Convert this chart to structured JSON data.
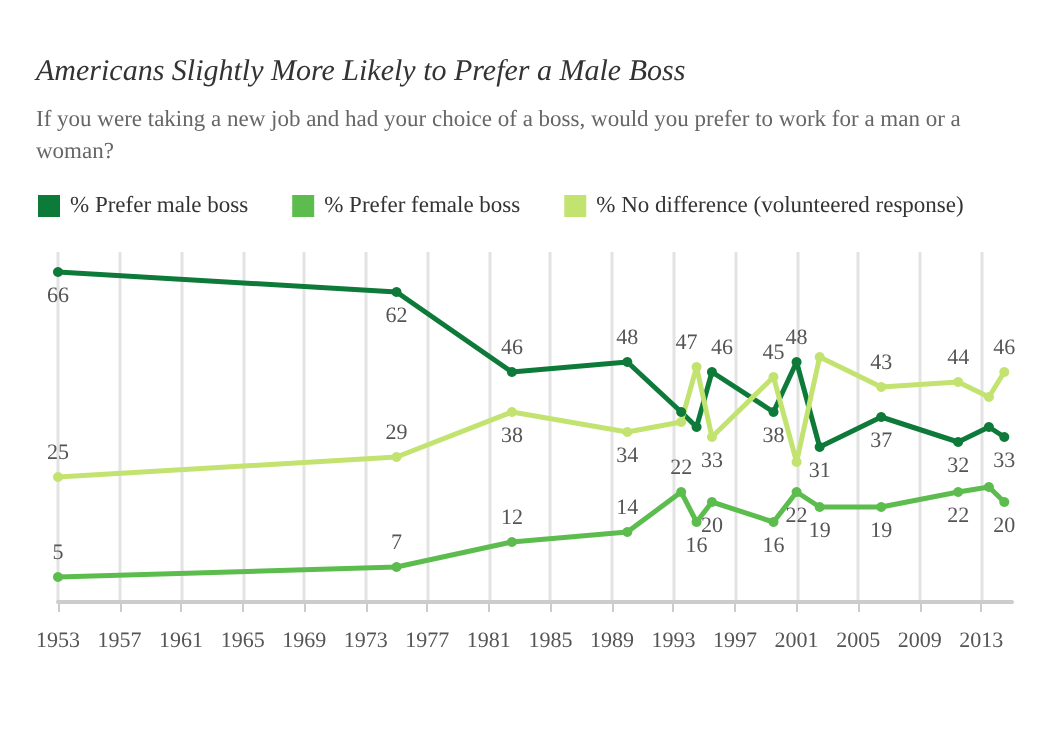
{
  "chart_data": {
    "type": "line",
    "title": "Americans Slightly More Likely to Prefer a Male Boss",
    "subtitle": "If you were taking a new job and had your choice of a boss, would you prefer to work for a man or a woman?",
    "x": [
      1953,
      1975,
      1982.5,
      1990,
      1993.5,
      1994.5,
      1995.5,
      1999.5,
      2001,
      2002.5,
      2006.5,
      2011.5,
      2013.5,
      2014.5
    ],
    "xlim": [
      1953,
      2015
    ],
    "xticks": [
      1953,
      1957,
      1961,
      1965,
      1969,
      1973,
      1977,
      1981,
      1985,
      1989,
      1993,
      1997,
      2001,
      2005,
      2009,
      2013
    ],
    "ylim": [
      0,
      70
    ],
    "tick_labels": "x",
    "grid": "x",
    "legend": "top left",
    "marker": "circle",
    "line_style": "solid",
    "series": [
      {
        "name": "% Prefer male boss",
        "color": "#0e7a3a",
        "values": [
          66,
          62,
          46,
          48,
          38,
          35,
          46,
          38,
          48,
          31,
          37,
          32,
          35,
          33
        ],
        "value_labels": [
          "66",
          "62",
          "46",
          "48",
          null,
          null,
          "46",
          "38",
          "48",
          "31",
          "37",
          "32",
          null,
          "33"
        ]
      },
      {
        "name": "% Prefer female boss",
        "color": "#5cbd4e",
        "values": [
          5,
          7,
          12,
          14,
          22,
          16,
          20,
          16,
          22,
          19,
          19,
          22,
          23,
          20
        ],
        "value_labels": [
          "5",
          "7",
          "12",
          "14",
          "22",
          "16",
          "20",
          "16",
          "22",
          "19",
          "19",
          "22",
          null,
          "20"
        ]
      },
      {
        "name": "% No difference (volunteered response)",
        "color": "#c2e370",
        "values": [
          25,
          29,
          38,
          34,
          36,
          47,
          33,
          45,
          28,
          49,
          43,
          44,
          41,
          46
        ],
        "value_labels": [
          "25",
          "29",
          "38",
          "34",
          null,
          "47",
          "33",
          "45",
          null,
          null,
          "43",
          "44",
          null,
          "46"
        ]
      }
    ]
  }
}
